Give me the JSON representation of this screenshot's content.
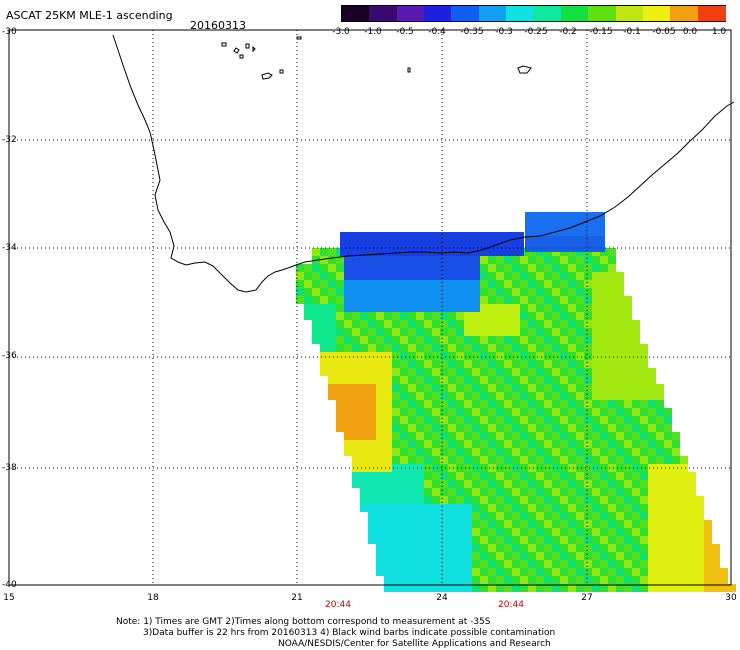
{
  "title": "ASCAT 25KM MLE-1 ascending",
  "date": "20160313",
  "colorbar": {
    "labels": [
      "-3.0",
      "-1.0",
      "-0.5",
      "-0.4",
      "-0.35",
      "-0.3",
      "-0.25",
      "-0.2",
      "-0.15",
      "-0.1",
      "-0.05",
      "0.0",
      "1.0"
    ],
    "colors": [
      "#1a0026",
      "#3a0a6e",
      "#5a1ab0",
      "#2020e0",
      "#1060f0",
      "#10a0f0",
      "#10e0e0",
      "#10e8a0",
      "#10e040",
      "#60e010",
      "#c0e810",
      "#f0f010",
      "#f0a010",
      "#f04010"
    ]
  },
  "axes": {
    "lat_labels": [
      "-30",
      "-32",
      "-34",
      "-36",
      "-38",
      "-40"
    ],
    "lon_labels": [
      "15",
      "18",
      "21",
      "24",
      "27",
      "30"
    ]
  },
  "pass_times": [
    "20:44",
    "20:44"
  ],
  "notes": [
    "Note: 1) Times are GMT 2)Times along bottom correspond to measurement at -35S",
    "3)Data buffer is 22 hrs from 20160313 4) Black wind barbs indicate possible contamination",
    "NOAA/NESDIS/Center for Satellite Applications and Research"
  ]
}
